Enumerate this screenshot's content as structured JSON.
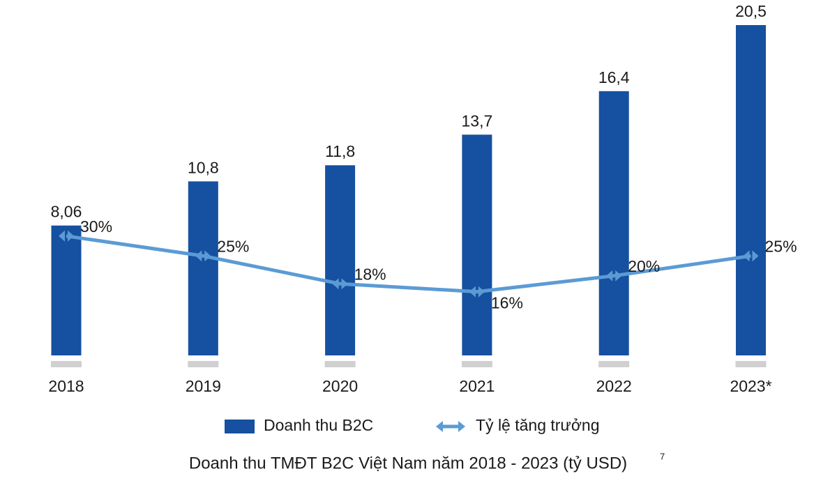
{
  "chart_data": {
    "type": "bar_line",
    "title": "Doanh thu TMĐT B2C Việt Nam năm 2018 - 2023 (tỷ USD)",
    "title_note": "7",
    "categories": [
      "2018",
      "2019",
      "2020",
      "2021",
      "2022",
      "2023*"
    ],
    "series": [
      {
        "name": "Doanh thu B2C",
        "type": "bar",
        "color": "#1650a0",
        "values": [
          8.06,
          10.8,
          11.8,
          13.7,
          16.4,
          20.5
        ],
        "value_labels": [
          "8,06",
          "10,8",
          "11,8",
          "13,7",
          "16,4",
          "20,5"
        ]
      },
      {
        "name": "Tỷ lệ tăng trưởng",
        "type": "line",
        "axis": "y2",
        "color": "#5b9bd5",
        "values": [
          30,
          25,
          18,
          16,
          20,
          25
        ],
        "value_labels": [
          "30%",
          "25%",
          "18%",
          "16%",
          "20%",
          "25%"
        ]
      }
    ],
    "ylim": [
      0,
      20.5
    ],
    "y2lim": [
      0,
      83
    ]
  }
}
